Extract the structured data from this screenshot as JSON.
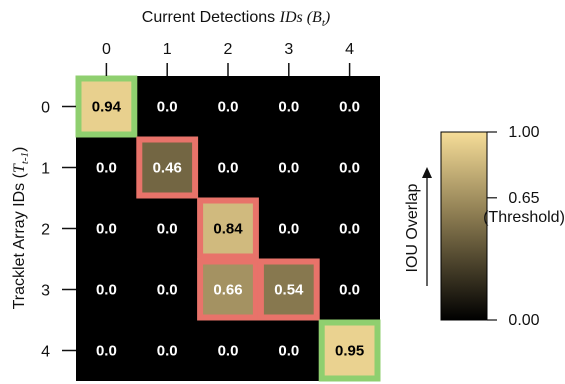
{
  "chart_data": {
    "type": "heatmap",
    "title": "",
    "xlabel": {
      "prefix": "Current Detections ",
      "italic_main": "IDs (B",
      "sub": "t",
      "suffix": ")"
    },
    "ylabel": {
      "prefix": "Tracklet Array IDs (",
      "italic_main": "T",
      "sub": "t-1",
      "suffix": ")"
    },
    "x_ticks": [
      "0",
      "1",
      "2",
      "3",
      "4"
    ],
    "y_ticks": [
      "0",
      "1",
      "2",
      "3",
      "4"
    ],
    "values": [
      [
        "0.94",
        "0.0",
        "0.0",
        "0.0",
        "0.0"
      ],
      [
        "0.0",
        "0.46",
        "0.0",
        "0.0",
        "0.0"
      ],
      [
        "0.0",
        "0.0",
        "0.84",
        "0.0",
        "0.0"
      ],
      [
        "0.0",
        "0.0",
        "0.66",
        "0.54",
        "0.0"
      ],
      [
        "0.0",
        "0.0",
        "0.0",
        "0.0",
        "0.95"
      ]
    ],
    "highlights": [
      {
        "row": 0,
        "col": 0,
        "color": "#8fcf6f"
      },
      {
        "row": 1,
        "col": 1,
        "color": "#e8736a"
      },
      {
        "row": 2,
        "col": 2,
        "color": "#e8736a"
      },
      {
        "row": 3,
        "col": 2,
        "color": "#e8736a"
      },
      {
        "row": 3,
        "col": 3,
        "color": "#e8736a"
      },
      {
        "row": 4,
        "col": 4,
        "color": "#8fcf6f"
      }
    ],
    "colorbar": {
      "label": "IOU Overlap",
      "range": [
        0,
        1
      ],
      "ticks": [
        {
          "value": 1.0,
          "label": "1.00"
        },
        {
          "value": 0.65,
          "label": "0.65",
          "sublabel": "(Threshold)"
        },
        {
          "value": 0.0,
          "label": "0.00"
        }
      ],
      "colors": {
        "low": "#000000",
        "mid": "#8a7a50",
        "high": "#f6dd98"
      }
    }
  }
}
